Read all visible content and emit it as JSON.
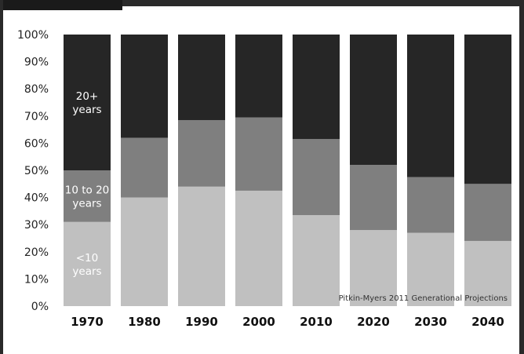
{
  "chart_data": {
    "type": "bar",
    "stacked": true,
    "categories": [
      "1970",
      "1980",
      "1990",
      "2000",
      "2010",
      "2020",
      "2030",
      "2040"
    ],
    "series": [
      {
        "name": "<10 years",
        "color": "#c0c0c0",
        "values": [
          31,
          40,
          44,
          42.5,
          33.5,
          28,
          27,
          24
        ]
      },
      {
        "name": "10 to 20 years",
        "color": "#7f7f7f",
        "values": [
          19,
          22,
          24.5,
          27,
          28,
          24,
          20.5,
          21
        ]
      },
      {
        "name": "20+ years",
        "color": "#262626",
        "values": [
          50,
          38,
          31.5,
          30.5,
          38.5,
          48,
          52.5,
          55
        ]
      }
    ],
    "segment_labels": [
      {
        "series": 0,
        "lines": [
          "<10",
          "years"
        ]
      },
      {
        "series": 1,
        "lines": [
          "10 to 20",
          "years"
        ]
      },
      {
        "series": 2,
        "lines": [
          "20+",
          "years"
        ]
      }
    ],
    "yticks": [
      "0%",
      "10%",
      "20%",
      "30%",
      "40%",
      "50%",
      "60%",
      "70%",
      "80%",
      "90%",
      "100%"
    ],
    "ylim": [
      0,
      100
    ],
    "grid": false,
    "source": "Pitkin-Myers 2011 Generational Projections"
  }
}
